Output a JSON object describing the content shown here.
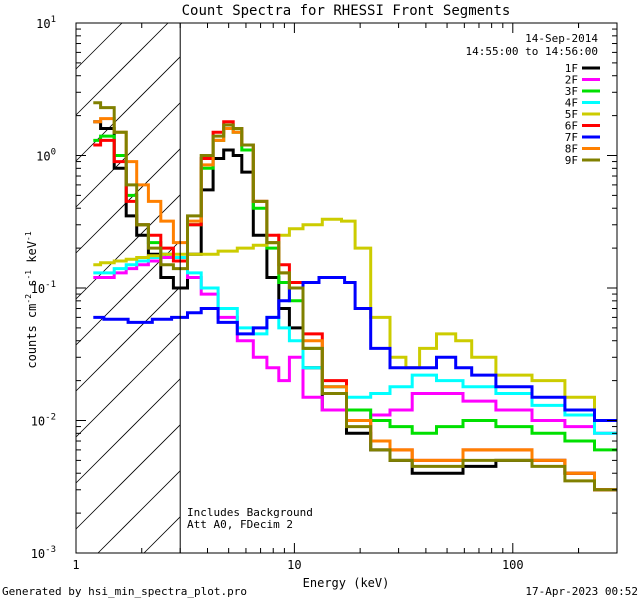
{
  "chart_data": {
    "type": "line",
    "title": "Count Spectra for RHESSI Front Segments",
    "xlabel": "Energy (keV)",
    "ylabel_parts": [
      "counts cm",
      "-2",
      " s",
      "-1",
      " keV",
      "-1"
    ],
    "xscale": "log",
    "yscale": "log",
    "xlim": [
      1,
      300
    ],
    "ylim": [
      0.001,
      10
    ],
    "x_ticks": [
      {
        "value": 1,
        "label": "1"
      },
      {
        "value": 10,
        "label": "10"
      },
      {
        "value": 100,
        "label": "100"
      }
    ],
    "y_ticks": [
      {
        "value": 0.001,
        "base": "10",
        "exp": "-3"
      },
      {
        "value": 0.01,
        "base": "10",
        "exp": "-2"
      },
      {
        "value": 0.1,
        "base": "10",
        "exp": "-1"
      },
      {
        "value": 1,
        "base": "10",
        "exp": "0"
      },
      {
        "value": 10,
        "base": "10",
        "exp": "1"
      }
    ],
    "attenuator_threshold_kev": 3,
    "date": "14-Sep-2014",
    "time_range": "14:55:00 to 14:56:00",
    "annotations": [
      "Includes Background",
      "Att A0, FDecim 2"
    ],
    "series": [
      {
        "name": "1F",
        "color": "#000000",
        "x": [
          1.2,
          1.4,
          1.6,
          1.8,
          2.0,
          2.3,
          2.6,
          3.0,
          3.5,
          4.0,
          4.5,
          5.0,
          5.5,
          6.0,
          7,
          8,
          9,
          10,
          12,
          15,
          20,
          25,
          30,
          40,
          50,
          70,
          100,
          150,
          200,
          280
        ],
        "y": [
          1.8,
          1.6,
          0.8,
          0.35,
          0.25,
          0.18,
          0.12,
          0.1,
          0.18,
          0.55,
          0.95,
          1.1,
          1.0,
          0.75,
          0.25,
          0.12,
          0.07,
          0.05,
          0.025,
          0.012,
          0.008,
          0.006,
          0.005,
          0.004,
          0.004,
          0.0045,
          0.005,
          0.005,
          0.004,
          0.003
        ]
      },
      {
        "name": "2F",
        "color": "#ff00ff",
        "x": [
          1.2,
          1.4,
          1.6,
          1.8,
          2.0,
          2.3,
          2.6,
          3.0,
          3.5,
          4.0,
          5,
          6,
          7,
          8,
          9,
          10,
          12,
          15,
          20,
          25,
          30,
          40,
          50,
          70,
          100,
          150,
          200,
          280
        ],
        "y": [
          0.12,
          0.12,
          0.13,
          0.14,
          0.15,
          0.16,
          0.17,
          0.17,
          0.12,
          0.09,
          0.06,
          0.04,
          0.03,
          0.025,
          0.02,
          0.03,
          0.015,
          0.012,
          0.01,
          0.011,
          0.012,
          0.016,
          0.016,
          0.014,
          0.012,
          0.01,
          0.009,
          0.008
        ]
      },
      {
        "name": "3F",
        "color": "#00e000",
        "x": [
          1.2,
          1.4,
          1.6,
          1.8,
          2.0,
          2.3,
          2.6,
          3.0,
          3.5,
          4.0,
          4.5,
          5.0,
          5.5,
          6.0,
          7,
          8,
          9,
          10,
          12,
          15,
          20,
          25,
          30,
          40,
          50,
          70,
          100,
          150,
          200,
          280
        ],
        "y": [
          1.3,
          1.4,
          1.0,
          0.5,
          0.3,
          0.22,
          0.18,
          0.17,
          0.3,
          0.8,
          1.3,
          1.6,
          1.5,
          1.1,
          0.4,
          0.2,
          0.11,
          0.08,
          0.035,
          0.018,
          0.012,
          0.01,
          0.009,
          0.008,
          0.009,
          0.01,
          0.009,
          0.008,
          0.007,
          0.006
        ]
      },
      {
        "name": "4F",
        "color": "#00ffff",
        "x": [
          1.2,
          1.4,
          1.6,
          1.8,
          2.0,
          2.3,
          2.6,
          3.0,
          3.5,
          4.0,
          5,
          6,
          7,
          8,
          9,
          10,
          12,
          15,
          20,
          25,
          30,
          40,
          50,
          70,
          100,
          150,
          200,
          280
        ],
        "y": [
          0.13,
          0.13,
          0.14,
          0.15,
          0.16,
          0.17,
          0.18,
          0.17,
          0.13,
          0.1,
          0.07,
          0.05,
          0.045,
          0.06,
          0.05,
          0.04,
          0.025,
          0.018,
          0.015,
          0.016,
          0.018,
          0.022,
          0.02,
          0.018,
          0.016,
          0.013,
          0.011,
          0.008
        ]
      },
      {
        "name": "5F",
        "color": "#cccc00",
        "x": [
          1.2,
          1.4,
          1.6,
          1.8,
          2.0,
          2.3,
          2.6,
          3.0,
          3.5,
          4.0,
          5,
          6,
          7,
          8,
          9,
          10,
          12,
          15,
          18,
          20,
          25,
          30,
          35,
          40,
          50,
          60,
          70,
          100,
          150,
          200,
          280
        ],
        "y": [
          0.15,
          0.155,
          0.16,
          0.165,
          0.17,
          0.175,
          0.18,
          0.18,
          0.18,
          0.18,
          0.19,
          0.2,
          0.21,
          0.22,
          0.25,
          0.28,
          0.3,
          0.33,
          0.32,
          0.2,
          0.06,
          0.03,
          0.025,
          0.035,
          0.045,
          0.04,
          0.03,
          0.022,
          0.02,
          0.015,
          0.01
        ]
      },
      {
        "name": "6F",
        "color": "#ff0000",
        "x": [
          1.2,
          1.4,
          1.6,
          1.8,
          2.0,
          2.3,
          2.6,
          3.0,
          3.5,
          4.0,
          4.5,
          5.0,
          5.5,
          6.0,
          7,
          8,
          9,
          10,
          12,
          15,
          20,
          25,
          30,
          40,
          50,
          70,
          100,
          150,
          200,
          280
        ],
        "y": [
          1.2,
          1.3,
          0.9,
          0.45,
          0.3,
          0.25,
          0.2,
          0.16,
          0.3,
          0.95,
          1.5,
          1.8,
          1.6,
          1.2,
          0.45,
          0.25,
          0.15,
          0.11,
          0.045,
          0.02,
          0.01,
          0.007,
          0.006,
          0.005,
          0.005,
          0.006,
          0.006,
          0.005,
          0.004,
          0.003
        ]
      },
      {
        "name": "7F",
        "color": "#0000ff",
        "x": [
          1.2,
          1.5,
          2.0,
          2.5,
          3.0,
          3.5,
          4.0,
          5,
          6,
          7,
          8,
          9,
          10,
          12,
          14,
          16,
          18,
          20,
          25,
          30,
          40,
          50,
          60,
          70,
          100,
          150,
          200,
          280
        ],
        "y": [
          0.06,
          0.058,
          0.055,
          0.058,
          0.06,
          0.065,
          0.07,
          0.055,
          0.045,
          0.05,
          0.06,
          0.08,
          0.1,
          0.11,
          0.12,
          0.12,
          0.11,
          0.07,
          0.035,
          0.025,
          0.025,
          0.03,
          0.025,
          0.022,
          0.018,
          0.015,
          0.012,
          0.01
        ]
      },
      {
        "name": "8F",
        "color": "#ff8000",
        "x": [
          1.2,
          1.4,
          1.6,
          1.8,
          2.0,
          2.3,
          2.6,
          3.0,
          3.5,
          4.0,
          4.5,
          5.0,
          5.5,
          6.0,
          7,
          8,
          9,
          10,
          12,
          15,
          20,
          25,
          30,
          40,
          50,
          70,
          100,
          150,
          200,
          280
        ],
        "y": [
          1.8,
          1.9,
          1.5,
          0.9,
          0.6,
          0.45,
          0.32,
          0.22,
          0.32,
          0.85,
          1.3,
          1.6,
          1.5,
          1.2,
          0.45,
          0.22,
          0.13,
          0.1,
          0.04,
          0.018,
          0.01,
          0.007,
          0.006,
          0.005,
          0.005,
          0.006,
          0.006,
          0.005,
          0.004,
          0.003
        ]
      },
      {
        "name": "9F",
        "color": "#808000",
        "x": [
          1.2,
          1.4,
          1.6,
          1.8,
          2.0,
          2.3,
          2.6,
          3.0,
          3.5,
          4.0,
          4.5,
          5.0,
          5.5,
          6.0,
          7,
          8,
          9,
          10,
          12,
          15,
          20,
          25,
          30,
          40,
          50,
          70,
          100,
          150,
          200,
          280
        ],
        "y": [
          2.5,
          2.3,
          1.5,
          0.6,
          0.3,
          0.2,
          0.15,
          0.14,
          0.35,
          1.0,
          1.4,
          1.7,
          1.6,
          1.2,
          0.45,
          0.22,
          0.13,
          0.1,
          0.035,
          0.016,
          0.009,
          0.006,
          0.005,
          0.0045,
          0.0045,
          0.005,
          0.005,
          0.0045,
          0.0035,
          0.003
        ]
      }
    ]
  },
  "footer": {
    "generated_by": "Generated by hsi_min_spectra_plot.pro",
    "timestamp": "17-Apr-2023 00:52"
  }
}
